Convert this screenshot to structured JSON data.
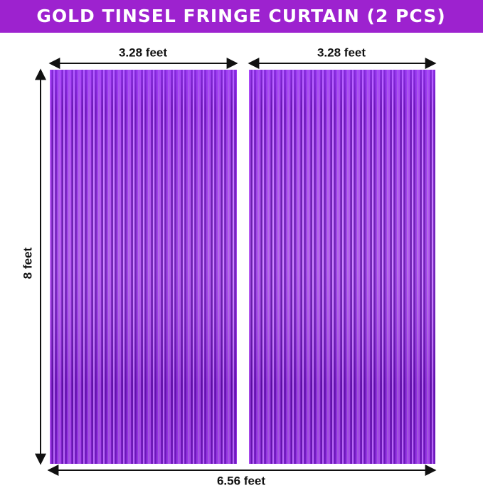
{
  "header": {
    "title": "GOLD TINSEL FRINGE CURTAIN (2 PCS)"
  },
  "dimensions": {
    "panel_widths": [
      "3.28 feet",
      "3.28 feet"
    ],
    "height": "8 feet",
    "total_width": "6.56 feet"
  }
}
